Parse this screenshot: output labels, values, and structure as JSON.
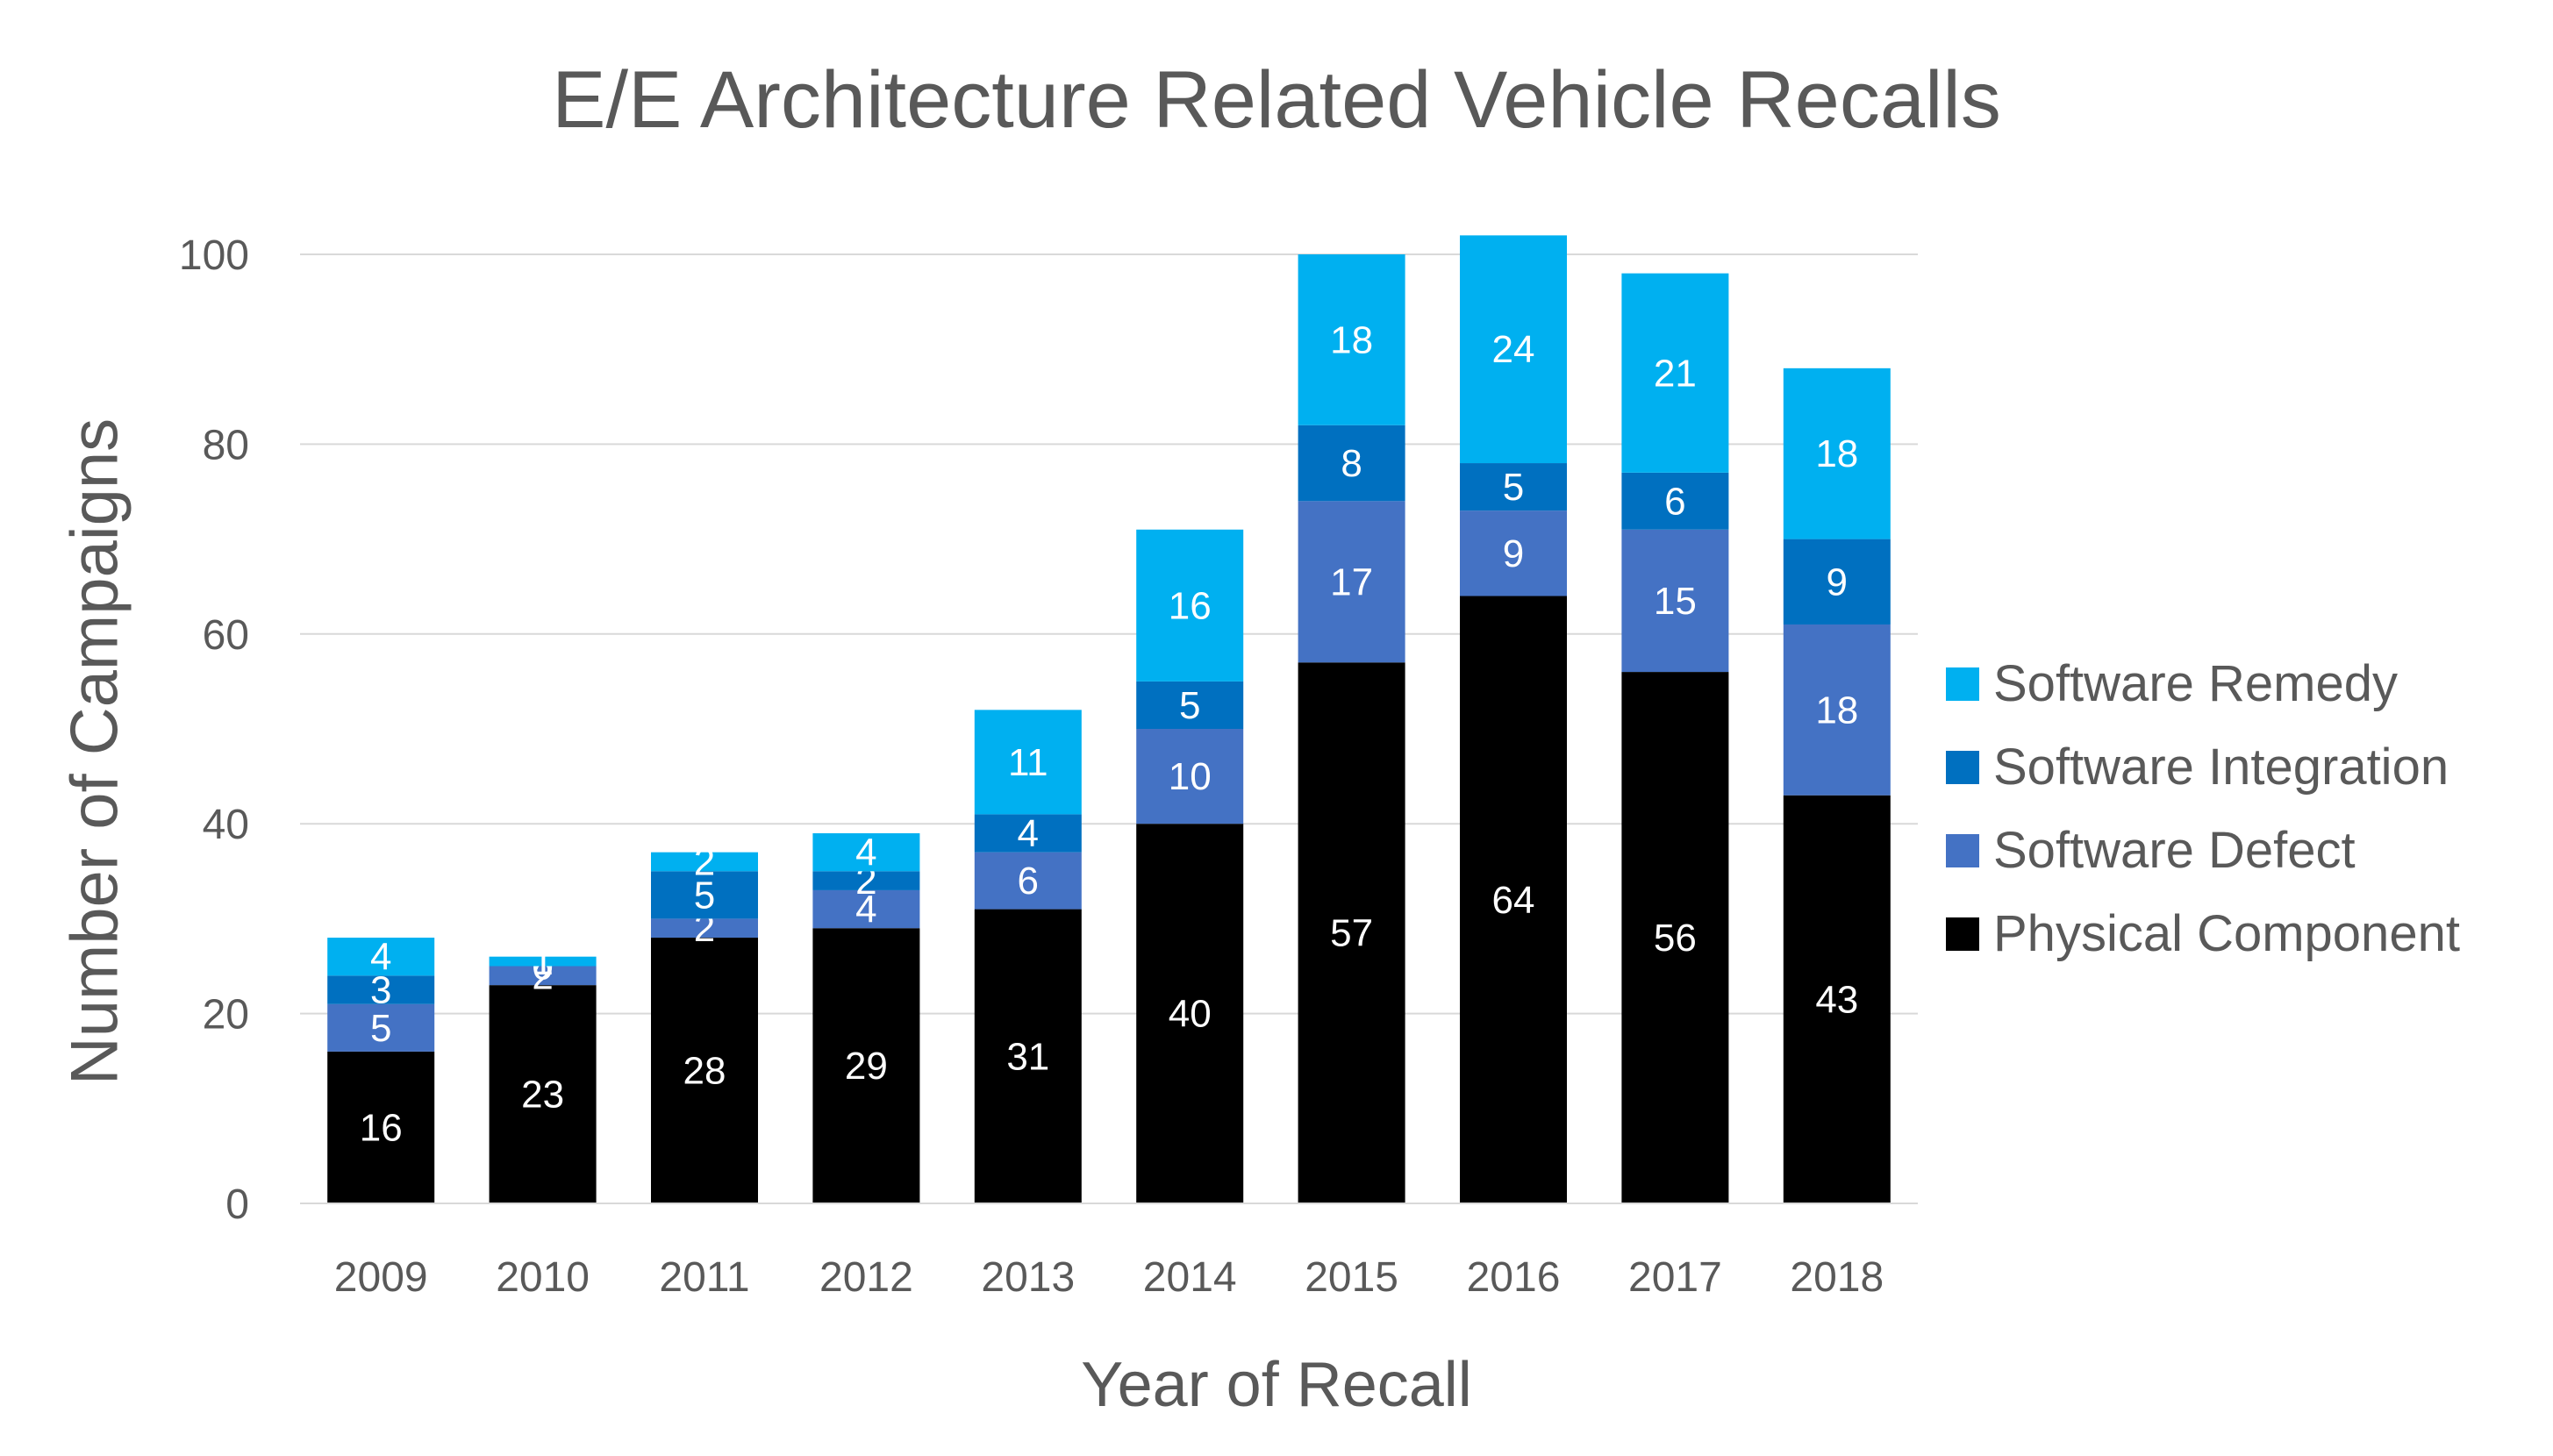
{
  "chart_data": {
    "type": "bar",
    "stacked": true,
    "title": "E/E Architecture Related Vehicle Recalls",
    "xlabel": "Year of Recall",
    "ylabel": "Number of Campaigns",
    "ylim": [
      0,
      100
    ],
    "yticks": [
      0,
      20,
      40,
      60,
      80,
      100
    ],
    "grid": true,
    "legend_position": "right",
    "categories": [
      "2009",
      "2010",
      "2011",
      "2012",
      "2013",
      "2014",
      "2015",
      "2016",
      "2017",
      "2018"
    ],
    "series": [
      {
        "name": "Physical Component",
        "color": "#000000",
        "label_color": "#ffffff",
        "values": [
          16,
          23,
          28,
          29,
          31,
          40,
          57,
          64,
          56,
          43
        ]
      },
      {
        "name": "Software Defect",
        "color": "#4472C4",
        "label_color": "#ffffff",
        "values": [
          5,
          2,
          2,
          4,
          6,
          10,
          17,
          9,
          15,
          18
        ]
      },
      {
        "name": "Software Integration",
        "color": "#0070C0",
        "label_color": "#ffffff",
        "values": [
          3,
          0,
          5,
          2,
          4,
          5,
          8,
          5,
          6,
          9
        ]
      },
      {
        "name": "Software Remedy",
        "color": "#00B0F0",
        "label_color": "#ffffff",
        "values": [
          4,
          1,
          2,
          4,
          11,
          16,
          18,
          24,
          21,
          18
        ]
      }
    ]
  }
}
